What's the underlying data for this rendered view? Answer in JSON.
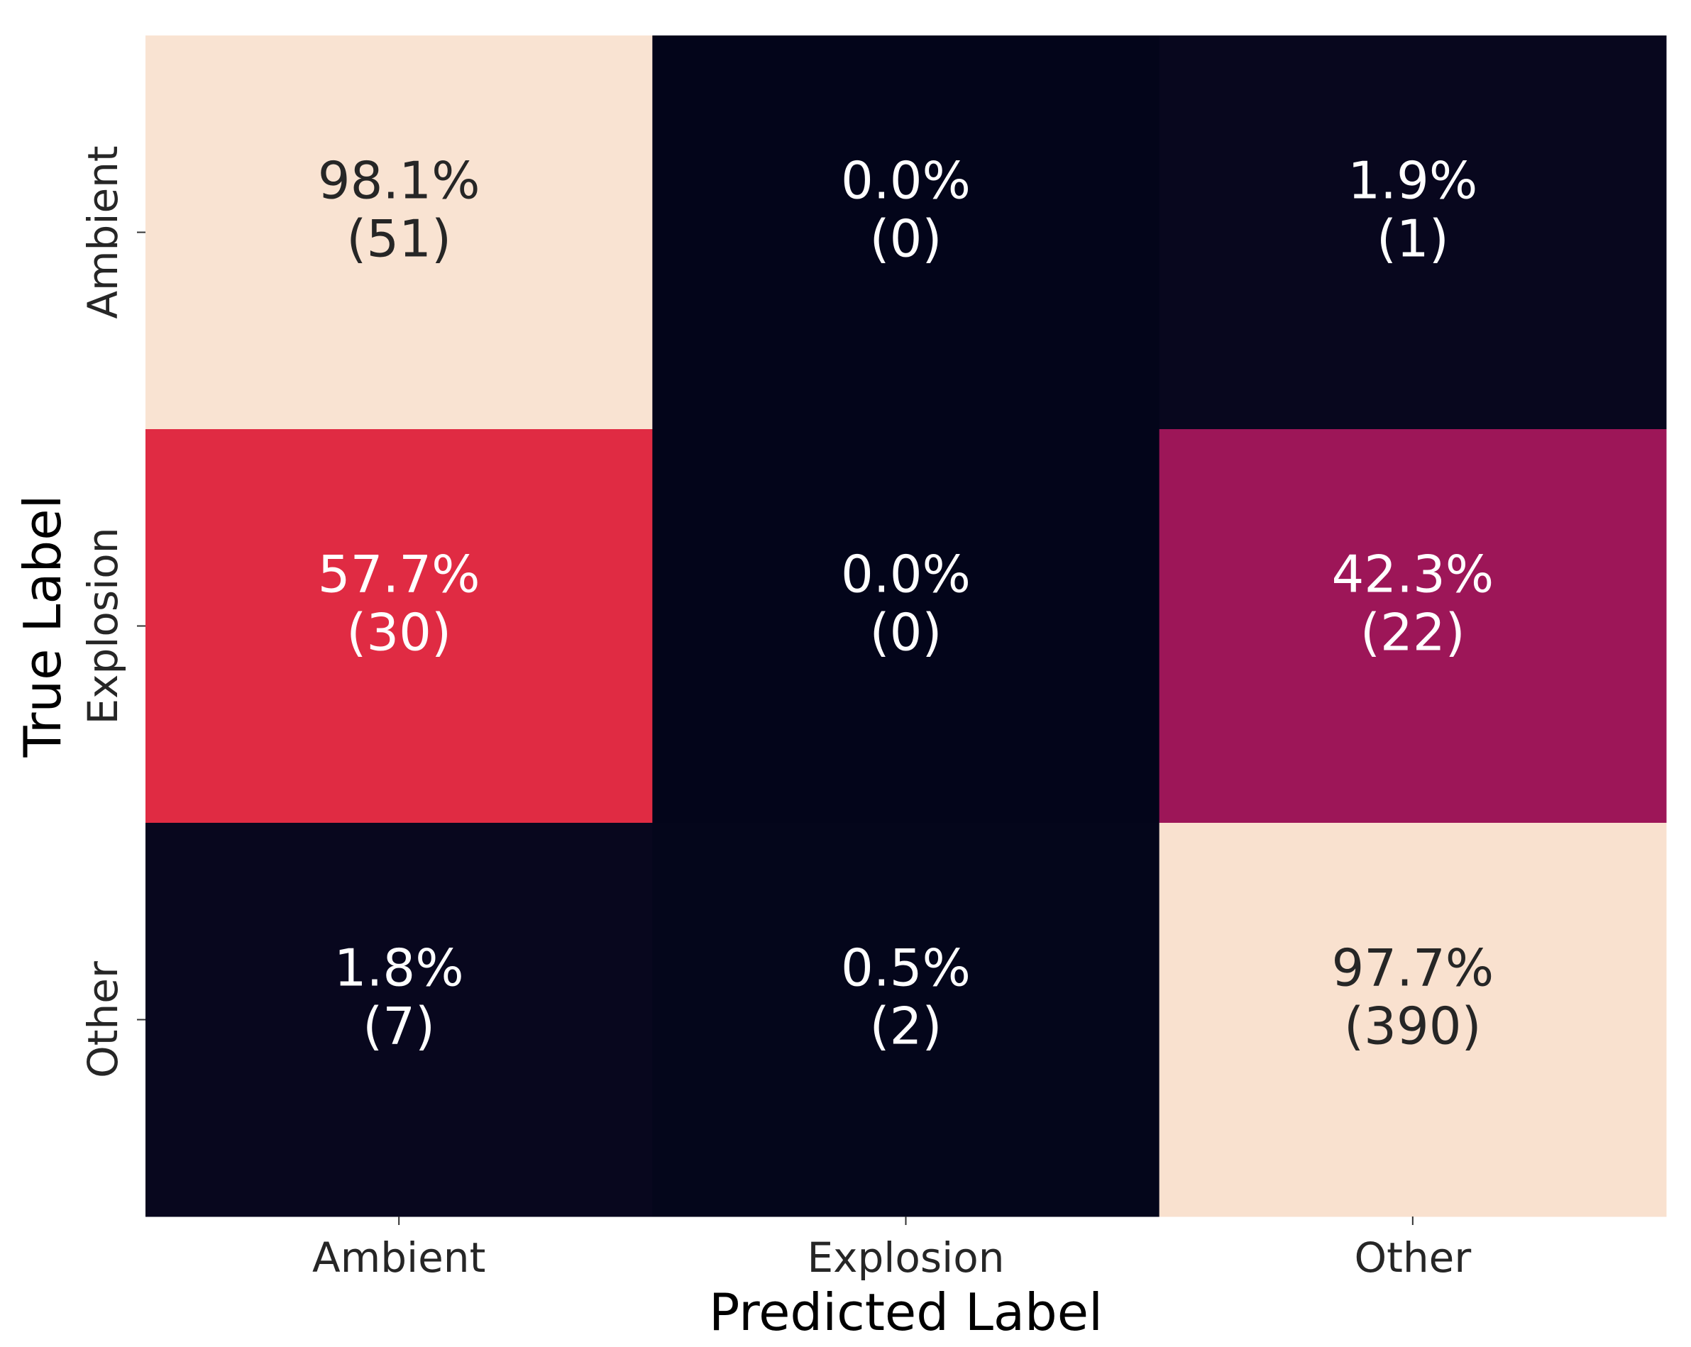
{
  "chart_data": {
    "type": "heatmap",
    "title": "",
    "xlabel": "Predicted Label",
    "ylabel": "True Label",
    "x_categories": [
      "Ambient",
      "Explosion",
      "Other"
    ],
    "y_categories": [
      "Ambient",
      "Explosion",
      "Other"
    ],
    "cells": [
      [
        {
          "percent": "98.1%",
          "count": "(51)",
          "value": 98.1
        },
        {
          "percent": "0.0%",
          "count": "(0)",
          "value": 0.0
        },
        {
          "percent": "1.9%",
          "count": "(1)",
          "value": 1.9
        }
      ],
      [
        {
          "percent": "57.7%",
          "count": "(30)",
          "value": 57.7
        },
        {
          "percent": "0.0%",
          "count": "(0)",
          "value": 0.0
        },
        {
          "percent": "42.3%",
          "count": "(22)",
          "value": 42.3
        }
      ],
      [
        {
          "percent": "1.8%",
          "count": "(7)",
          "value": 1.8
        },
        {
          "percent": "0.5%",
          "count": "(2)",
          "value": 0.5
        },
        {
          "percent": "97.7%",
          "count": "(390)",
          "value": 97.7
        }
      ]
    ],
    "colormap": "rocket",
    "value_range": [
      0,
      100
    ],
    "colorbar": false,
    "grid": false
  }
}
